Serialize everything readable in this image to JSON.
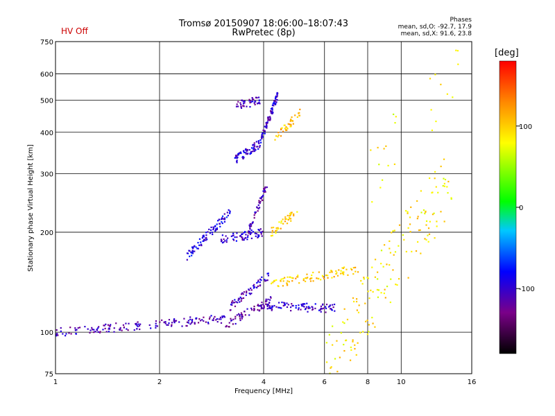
{
  "header": {
    "title_line1": "Tromsø 20150907 18:06:00–18:07:43",
    "title_line2": "RwPretec (8p)",
    "hv_status": "HV Off",
    "stats_title": "Phases",
    "stats_o": "mean, sd,O: -92.7, 17.9",
    "stats_x": "mean, sd,X:  91.6, 23.8"
  },
  "colorbar": {
    "label": "[deg]",
    "ticks": [
      {
        "value": 100,
        "label": "100"
      },
      {
        "value": 0,
        "label": "0"
      },
      {
        "value": -100,
        "label": "-100"
      }
    ],
    "range": [
      -180,
      180
    ]
  },
  "chart_data": {
    "type": "scatter",
    "title": "Tromsø 20150907 18:06:00–18:07:43",
    "subtitle": "RwPretec (8p)",
    "xlabel": "Frequency [MHz]",
    "ylabel": "Stationary phase Virtual Height [km]",
    "x_scale": "log",
    "y_scale": "log",
    "xlim": [
      1,
      16
    ],
    "ylim": [
      75,
      750
    ],
    "x_ticks": [
      1,
      2,
      4,
      6,
      8,
      10,
      16
    ],
    "x_tick_labels": [
      "1",
      "2",
      "4",
      "6",
      "8",
      "10",
      "16"
    ],
    "y_ticks": [
      75,
      100,
      200,
      300,
      400,
      500,
      600,
      750
    ],
    "y_tick_labels": [
      "75",
      "100",
      "200",
      "300",
      "400",
      "500",
      "600",
      "750"
    ],
    "grid": true,
    "color_by": "phase [deg]",
    "traces": [
      {
        "name": "",
        "x_range": [
          1.0,
          3.1
        ],
        "y_start": 100,
        "y_end": 110,
        "phase": -110,
        "count": 160
      },
      {
        "name": "",
        "x_range": [
          3.1,
          4.2
        ],
        "y_start": 105,
        "y_end": 125,
        "phase": -120,
        "count": 70
      },
      {
        "name": "",
        "x_range": [
          3.2,
          4.2
        ],
        "y_start": 120,
        "y_end": 150,
        "phase": -105,
        "count": 60
      },
      {
        "name": "",
        "x_range": [
          4.0,
          6.5
        ],
        "y_start": 120,
        "y_end": 118,
        "phase": -100,
        "count": 90
      },
      {
        "name": "",
        "x_range": [
          4.2,
          7.5
        ],
        "y_start": 140,
        "y_end": 155,
        "phase": 100,
        "count": 90
      },
      {
        "name": "",
        "x_range": [
          2.4,
          3.2
        ],
        "y_start": 170,
        "y_end": 230,
        "phase": -90,
        "count": 90
      },
      {
        "name": "",
        "x_range": [
          3.0,
          4.0
        ],
        "y_start": 190,
        "y_end": 200,
        "phase": -100,
        "count": 70
      },
      {
        "name": "",
        "x_range": [
          3.6,
          4.1
        ],
        "y_start": 200,
        "y_end": 280,
        "phase": -110,
        "count": 50
      },
      {
        "name": "",
        "x_range": [
          4.2,
          5.0
        ],
        "y_start": 200,
        "y_end": 230,
        "phase": 100,
        "count": 40
      },
      {
        "name": "",
        "x_range": [
          3.3,
          3.9
        ],
        "y_start": 330,
        "y_end": 370,
        "phase": -100,
        "count": 70
      },
      {
        "name": "",
        "x_range": [
          3.3,
          3.9
        ],
        "y_start": 480,
        "y_end": 500,
        "phase": -110,
        "count": 45
      },
      {
        "name": "",
        "x_range": [
          3.9,
          4.4
        ],
        "y_start": 370,
        "y_end": 520,
        "phase": -100,
        "count": 80
      },
      {
        "name": "",
        "x_range": [
          4.3,
          5.1
        ],
        "y_start": 380,
        "y_end": 460,
        "phase": 110,
        "count": 40
      },
      {
        "name": "",
        "x_range": [
          6.0,
          14.0
        ],
        "y_start": 80,
        "y_end": 300,
        "phase": 90,
        "count": 160
      },
      {
        "name": "",
        "x_range": [
          8.0,
          15.0
        ],
        "y_start": 300,
        "y_end": 680,
        "phase": 80,
        "count": 25
      }
    ]
  }
}
